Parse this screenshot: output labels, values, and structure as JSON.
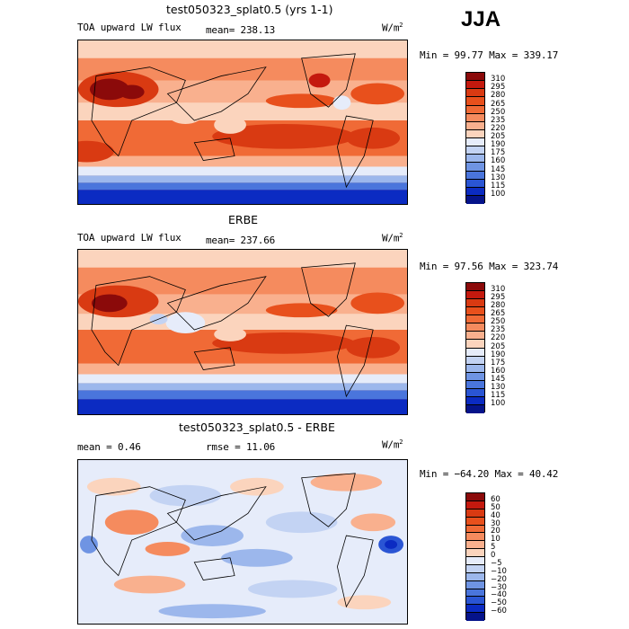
{
  "season": "JJA",
  "panels": [
    {
      "title": "test050323_splat0.5 (yrs 1-1)",
      "left_label": "TOA upward LW flux",
      "center_label": "mean= 238.13",
      "units_base": "W/m",
      "units_sup": "2",
      "minmax": "Min =  99.77 Max = 339.17"
    },
    {
      "title": "ERBE",
      "left_label": "TOA upward LW flux",
      "center_label": "mean= 237.66",
      "units_base": "W/m",
      "units_sup": "2",
      "minmax": "Min =  97.56 Max = 323.74"
    },
    {
      "title": "test050323_splat0.5 - ERBE",
      "left_label": "mean =   0.46",
      "center_label": "rmse =  11.06",
      "units_base": "W/m",
      "units_sup": "2",
      "minmax": "Min = −64.20 Max =  40.42"
    }
  ],
  "chart_data": [
    {
      "type": "heatmap",
      "title": "test050323_splat0.5 (yrs 1-1)",
      "field": "TOA upward LW flux",
      "units": "W/m2",
      "mean": 238.13,
      "min": 99.77,
      "max": 339.17,
      "legend_levels": [
        "310",
        "295",
        "280",
        "265",
        "250",
        "235",
        "220",
        "205",
        "190",
        "175",
        "160",
        "145",
        "130",
        "115",
        "100"
      ],
      "legend_colors": [
        "#8b0a0a",
        "#c4190e",
        "#d93a12",
        "#e8501c",
        "#f06a36",
        "#f58b5e",
        "#f9b08e",
        "#fbd4bd",
        "#e6ecfa",
        "#c3d3f3",
        "#9cb7ec",
        "#6f94e3",
        "#4a75dc",
        "#2a55d4",
        "#0b2bc2",
        "#05138a"
      ]
    },
    {
      "type": "heatmap",
      "title": "ERBE",
      "field": "TOA upward LW flux",
      "units": "W/m2",
      "mean": 237.66,
      "min": 97.56,
      "max": 323.74,
      "legend_levels": [
        "310",
        "295",
        "280",
        "265",
        "250",
        "235",
        "220",
        "205",
        "190",
        "175",
        "160",
        "145",
        "130",
        "115",
        "100"
      ],
      "legend_colors": [
        "#8b0a0a",
        "#c4190e",
        "#d93a12",
        "#e8501c",
        "#f06a36",
        "#f58b5e",
        "#f9b08e",
        "#fbd4bd",
        "#e6ecfa",
        "#c3d3f3",
        "#9cb7ec",
        "#6f94e3",
        "#4a75dc",
        "#2a55d4",
        "#0b2bc2",
        "#05138a"
      ]
    },
    {
      "type": "heatmap",
      "title": "test050323_splat0.5 - ERBE",
      "units": "W/m2",
      "mean": 0.46,
      "rmse": 11.06,
      "min": -64.2,
      "max": 40.42,
      "legend_levels": [
        "60",
        "50",
        "40",
        "30",
        "20",
        "10",
        "5",
        "0",
        "−5",
        "−10",
        "−20",
        "−30",
        "−40",
        "−50",
        "−60"
      ],
      "legend_colors": [
        "#8b0a0a",
        "#c4190e",
        "#d93a12",
        "#e8501c",
        "#f06a36",
        "#f58b5e",
        "#f9b08e",
        "#fbd4bd",
        "#e6ecfa",
        "#c3d3f3",
        "#9cb7ec",
        "#6f94e3",
        "#4a75dc",
        "#2a55d4",
        "#0b2bc2",
        "#05138a"
      ]
    }
  ]
}
